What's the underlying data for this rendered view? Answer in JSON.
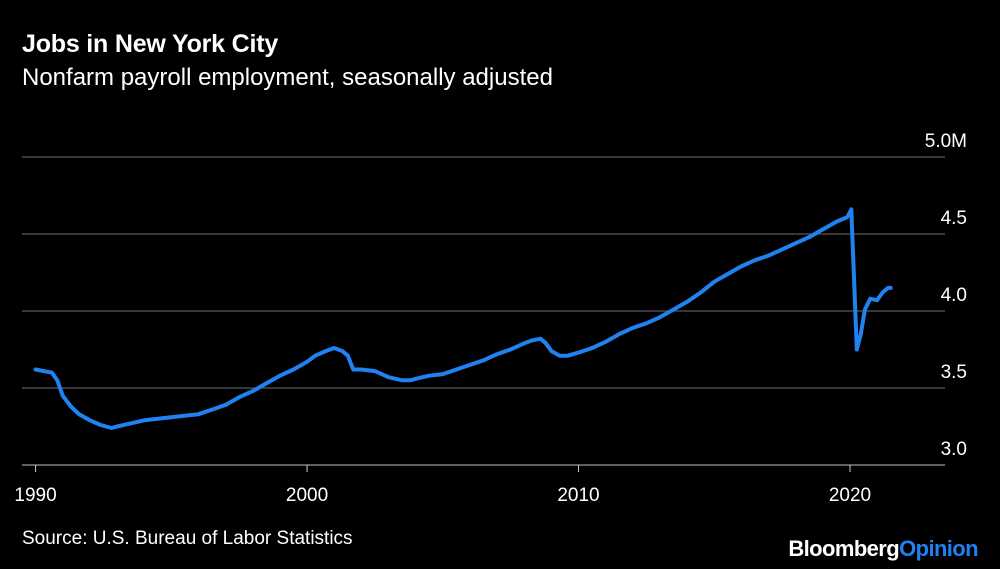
{
  "title": "Jobs in New York City",
  "subtitle": "Nonfarm payroll employment, seasonally adjusted",
  "source": "Source: U.S. Bureau of Labor Statistics",
  "brand": {
    "part1": "Bloomberg",
    "part2": "Opinion"
  },
  "colors": {
    "background": "#000000",
    "line": "#1f82f0",
    "grid": "#6e6e6e",
    "text": "#ffffff",
    "brand_accent": "#1f82f0"
  },
  "chart_data": {
    "type": "line",
    "title": "Jobs in New York City",
    "subtitle": "Nonfarm payroll employment, seasonally adjusted",
    "xlabel": "",
    "ylabel": "",
    "xlim": [
      1989.5,
      2023.5
    ],
    "ylim": [
      3.0,
      5.0
    ],
    "x_ticks": [
      1990,
      2000,
      2010,
      2020
    ],
    "x_tick_labels": [
      "1990",
      "2000",
      "2010",
      "2020"
    ],
    "y_ticks": [
      3.0,
      3.5,
      4.0,
      4.5,
      5.0
    ],
    "y_tick_labels": [
      "3.0",
      "3.5",
      "4.0",
      "4.5",
      "5.0M"
    ],
    "grid": "horizontal",
    "series": [
      {
        "color": "#1f82f0",
        "x": [
          1990.0,
          1990.3,
          1990.6,
          1990.8,
          1991.0,
          1991.3,
          1991.6,
          1992.0,
          1992.4,
          1992.8,
          1993.0,
          1993.5,
          1994.0,
          1994.5,
          1995.0,
          1995.5,
          1996.0,
          1996.5,
          1997.0,
          1997.5,
          1998.0,
          1998.5,
          1999.0,
          1999.5,
          2000.0,
          2000.3,
          2000.7,
          2001.0,
          2001.3,
          2001.5,
          2001.7,
          2002.0,
          2002.5,
          2003.0,
          2003.5,
          2003.8,
          2004.0,
          2004.5,
          2005.0,
          2005.5,
          2006.0,
          2006.5,
          2007.0,
          2007.5,
          2008.0,
          2008.3,
          2008.6,
          2008.8,
          2009.0,
          2009.3,
          2009.6,
          2010.0,
          2010.5,
          2011.0,
          2011.5,
          2012.0,
          2012.5,
          2013.0,
          2013.5,
          2014.0,
          2014.5,
          2015.0,
          2015.5,
          2016.0,
          2016.5,
          2017.0,
          2017.5,
          2018.0,
          2018.5,
          2019.0,
          2019.5,
          2019.9,
          2020.05,
          2020.15,
          2020.25,
          2020.4,
          2020.55,
          2020.75,
          2021.0,
          2021.2,
          2021.4,
          2021.5
        ],
        "y": [
          3.62,
          3.61,
          3.6,
          3.55,
          3.45,
          3.38,
          3.33,
          3.29,
          3.26,
          3.24,
          3.25,
          3.27,
          3.29,
          3.3,
          3.31,
          3.32,
          3.33,
          3.36,
          3.39,
          3.44,
          3.48,
          3.53,
          3.58,
          3.62,
          3.67,
          3.71,
          3.74,
          3.76,
          3.74,
          3.71,
          3.62,
          3.62,
          3.61,
          3.57,
          3.55,
          3.55,
          3.56,
          3.58,
          3.59,
          3.62,
          3.65,
          3.68,
          3.72,
          3.75,
          3.79,
          3.81,
          3.82,
          3.79,
          3.74,
          3.71,
          3.71,
          3.73,
          3.76,
          3.8,
          3.85,
          3.89,
          3.92,
          3.96,
          4.01,
          4.06,
          4.12,
          4.19,
          4.24,
          4.29,
          4.33,
          4.36,
          4.4,
          4.44,
          4.48,
          4.53,
          4.58,
          4.61,
          4.66,
          4.2,
          3.75,
          3.85,
          4.01,
          4.08,
          4.07,
          4.12,
          4.15,
          4.15
        ]
      }
    ]
  }
}
